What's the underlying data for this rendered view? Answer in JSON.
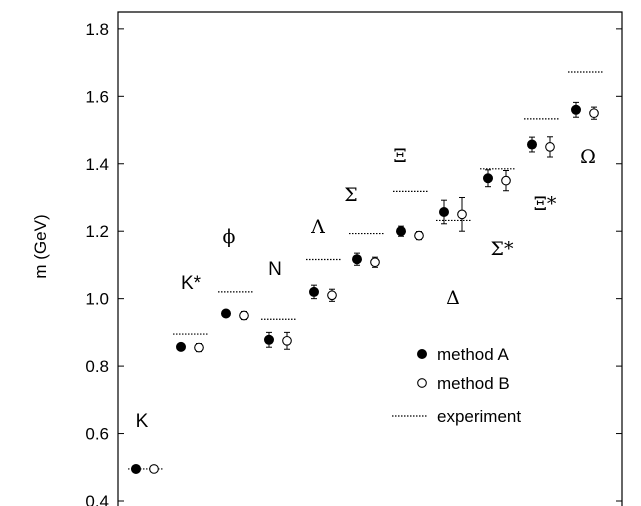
{
  "chart_data": {
    "type": "scatter",
    "ylabel": "m (GeV)",
    "ylim": [
      0.4,
      1.85
    ],
    "yticks": [
      "0.4",
      "0.6",
      "0.8",
      "1.0",
      "1.2",
      "1.4",
      "1.6",
      "1.8"
    ],
    "hadrons": [
      {
        "label": "K",
        "experiment": 0.495,
        "A": 0.495,
        "A_err": 0.005,
        "B": 0.495,
        "B_err": 0.005
      },
      {
        "label": "K*",
        "experiment": 0.895,
        "A": 0.857,
        "A_err": 0.01,
        "B": 0.855,
        "B_err": 0.012
      },
      {
        "label": "ϕ",
        "experiment": 1.02,
        "A": 0.956,
        "A_err": 0.01,
        "B": 0.95,
        "B_err": 0.012
      },
      {
        "label": "N",
        "experiment": 0.939,
        "A": 0.878,
        "A_err": 0.022,
        "B": 0.875,
        "B_err": 0.025
      },
      {
        "label": "Λ",
        "experiment": 1.116,
        "A": 1.02,
        "A_err": 0.02,
        "B": 1.01,
        "B_err": 0.018
      },
      {
        "label": "Σ",
        "experiment": 1.193,
        "A": 1.117,
        "A_err": 0.018,
        "B": 1.108,
        "B_err": 0.015
      },
      {
        "label": "Ξ",
        "experiment": 1.318,
        "A": 1.2,
        "A_err": 0.015,
        "B": 1.187,
        "B_err": 0.012
      },
      {
        "label": "Δ",
        "experiment": 1.232,
        "A": 1.257,
        "A_err": 0.035,
        "B": 1.25,
        "B_err": 0.05
      },
      {
        "label": "Σ*",
        "experiment": 1.385,
        "A": 1.357,
        "A_err": 0.025,
        "B": 1.35,
        "B_err": 0.03
      },
      {
        "label": "Ξ*",
        "experiment": 1.533,
        "A": 1.457,
        "A_err": 0.022,
        "B": 1.45,
        "B_err": 0.03
      },
      {
        "label": "Ω",
        "experiment": 1.672,
        "A": 1.56,
        "A_err": 0.022,
        "B": 1.55,
        "B_err": 0.018
      }
    ],
    "legend": [
      {
        "key": "A",
        "label": "method A"
      },
      {
        "key": "B",
        "label": "method B"
      },
      {
        "key": "experiment",
        "label": "experiment"
      }
    ],
    "legend_position": "bottom-right"
  }
}
